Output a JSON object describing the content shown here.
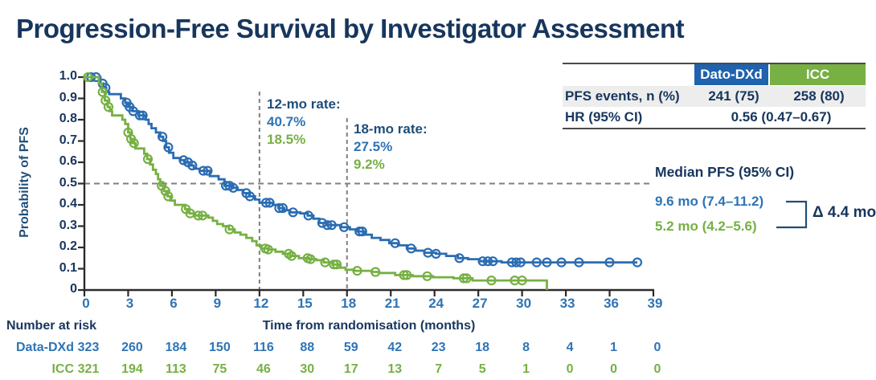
{
  "title": "Progression-Free Survival by Investigator Assessment",
  "colors": {
    "dato_curve": "#2A6CB2",
    "dato_text": "#2E74B5",
    "icc": "#76B043",
    "navy": "#17365D",
    "label_navy": "#1F4E79",
    "header_blue": "#1F62AE",
    "header_green": "#77B043",
    "row_gray": "#EDEDED",
    "axis": "#2B2B2B",
    "dashed_line": "#7F7F7F"
  },
  "summary_table": {
    "col_dato": "Dato-DXd",
    "col_icc": "ICC",
    "rows": [
      {
        "label": "PFS events, n (%)",
        "dato": "241 (75)",
        "icc": "258 (80)"
      },
      {
        "label": "HR (95% CI)",
        "combined": "0.56 (0.47–0.67)"
      }
    ]
  },
  "annotations": {
    "rate12_label": "12-mo rate:",
    "rate12_dato": "40.7%",
    "rate12_icc": "18.5%",
    "rate18_label": "18-mo rate:",
    "rate18_dato": "27.5%",
    "rate18_icc": "9.2%",
    "median_title": "Median PFS (95% CI)",
    "median_dato": "9.6 mo (7.4–11.2)",
    "median_icc": "5.2 mo (4.2–5.6)",
    "delta": "Δ 4.4 mo"
  },
  "axes": {
    "ylabel": "Probability of PFS",
    "xlabel": "Time from randomisation (months)"
  },
  "risk_table": {
    "heading": "Number at risk",
    "rows": [
      {
        "label": "Data-DXd",
        "counts": [
          323,
          260,
          184,
          150,
          116,
          88,
          59,
          42,
          23,
          18,
          8,
          4,
          1,
          0
        ]
      },
      {
        "label": "ICC",
        "counts": [
          321,
          194,
          113,
          75,
          46,
          30,
          17,
          13,
          7,
          5,
          1,
          0,
          0,
          0
        ]
      }
    ]
  },
  "chart_data": {
    "type": "line",
    "subtype": "kaplan-meier-step",
    "title": "Progression-Free Survival by Investigator Assessment",
    "xlabel": "Time from randomisation (months)",
    "ylabel": "Probability of PFS",
    "xlim": [
      0,
      39
    ],
    "ylim": [
      0,
      1.0
    ],
    "xticks": [
      0,
      3,
      6,
      9,
      12,
      15,
      18,
      21,
      24,
      27,
      30,
      33,
      36,
      39
    ],
    "ytick_labels": [
      "1.0",
      "0.9",
      "0.8",
      "0.7",
      "0.6",
      "0.5",
      "0.4",
      "0.3",
      "0.2",
      "0.1",
      "0"
    ],
    "reference_lines": {
      "horizontal_at": 0.5,
      "vertical_at": [
        12,
        18
      ]
    },
    "hr_95ci": "0.56 (0.47–0.67)",
    "series": [
      {
        "name": "Dato-DXd",
        "color": "#2A6CB2",
        "n": 323,
        "events": "241 (75)",
        "median_months": 9.6,
        "median_95ci": [
          7.4,
          11.2
        ],
        "rate_12mo_pct": 40.7,
        "rate_18mo_pct": 27.5,
        "end_month": 37.9,
        "drops_to_zero": false,
        "steps": [
          [
            0,
            1.0
          ],
          [
            1.1,
            0.97
          ],
          [
            1.3,
            0.95
          ],
          [
            1.5,
            0.93
          ],
          [
            1.7,
            0.92
          ],
          [
            2.5,
            0.9
          ],
          [
            2.8,
            0.88
          ],
          [
            3.0,
            0.86
          ],
          [
            3.3,
            0.84
          ],
          [
            3.7,
            0.82
          ],
          [
            4.2,
            0.8
          ],
          [
            4.4,
            0.78
          ],
          [
            4.6,
            0.76
          ],
          [
            4.9,
            0.74
          ],
          [
            5.2,
            0.72
          ],
          [
            5.4,
            0.7
          ],
          [
            5.6,
            0.67
          ],
          [
            5.8,
            0.645
          ],
          [
            6.1,
            0.62
          ],
          [
            6.6,
            0.61
          ],
          [
            6.9,
            0.6
          ],
          [
            7.2,
            0.585
          ],
          [
            7.5,
            0.57
          ],
          [
            7.9,
            0.56
          ],
          [
            8.6,
            0.535
          ],
          [
            9.2,
            0.52
          ],
          [
            9.6,
            0.49
          ],
          [
            10.1,
            0.48
          ],
          [
            10.5,
            0.47
          ],
          [
            10.9,
            0.455
          ],
          [
            11.3,
            0.44
          ],
          [
            11.7,
            0.425
          ],
          [
            12.0,
            0.41
          ],
          [
            12.9,
            0.4
          ],
          [
            13.3,
            0.385
          ],
          [
            13.7,
            0.375
          ],
          [
            14.1,
            0.365
          ],
          [
            14.8,
            0.36
          ],
          [
            15.3,
            0.35
          ],
          [
            15.7,
            0.335
          ],
          [
            16.1,
            0.315
          ],
          [
            16.6,
            0.305
          ],
          [
            17.6,
            0.295
          ],
          [
            18.2,
            0.285
          ],
          [
            18.7,
            0.275
          ],
          [
            19.2,
            0.26
          ],
          [
            19.7,
            0.245
          ],
          [
            20.3,
            0.235
          ],
          [
            20.9,
            0.22
          ],
          [
            21.5,
            0.21
          ],
          [
            22.1,
            0.195
          ],
          [
            22.7,
            0.185
          ],
          [
            23.3,
            0.175
          ],
          [
            24.1,
            0.17
          ],
          [
            24.8,
            0.16
          ],
          [
            25.6,
            0.15
          ],
          [
            26.3,
            0.145
          ],
          [
            27.1,
            0.135
          ],
          [
            28.6,
            0.13
          ]
        ],
        "censor_months": [
          0.45,
          0.8,
          1.25,
          1.45,
          2.9,
          3.1,
          3.35,
          3.8,
          4.0,
          5.35,
          5.75,
          6.8,
          7.1,
          7.4,
          8.15,
          8.45,
          9.7,
          9.95,
          10.2,
          11.1,
          11.35,
          12.45,
          12.7,
          13.35,
          13.6,
          14.3,
          15.35,
          16.3,
          16.65,
          16.95,
          17.8,
          18.85,
          19.05,
          21.3,
          22.4,
          23.55,
          24.1,
          25.7,
          27.3,
          27.65,
          28.0,
          29.3,
          29.6,
          29.9,
          31.0,
          31.7,
          32.7,
          33.9,
          36.0,
          37.9
        ]
      },
      {
        "name": "ICC",
        "color": "#76B043",
        "n": 321,
        "events": "258 (80)",
        "median_months": 5.2,
        "median_95ci": [
          4.2,
          5.6
        ],
        "rate_12mo_pct": 18.5,
        "rate_18mo_pct": 9.2,
        "end_month": 31.7,
        "drops_to_zero": true,
        "steps": [
          [
            0,
            1.0
          ],
          [
            1.0,
            0.97
          ],
          [
            1.2,
            0.93
          ],
          [
            1.4,
            0.89
          ],
          [
            1.6,
            0.86
          ],
          [
            1.75,
            0.84
          ],
          [
            1.9,
            0.82
          ],
          [
            2.6,
            0.8
          ],
          [
            2.8,
            0.78
          ],
          [
            3.0,
            0.74
          ],
          [
            3.15,
            0.71
          ],
          [
            3.3,
            0.69
          ],
          [
            3.5,
            0.665
          ],
          [
            4.1,
            0.64
          ],
          [
            4.3,
            0.615
          ],
          [
            4.5,
            0.59
          ],
          [
            4.7,
            0.565
          ],
          [
            4.9,
            0.545
          ],
          [
            5.05,
            0.52
          ],
          [
            5.2,
            0.49
          ],
          [
            5.45,
            0.465
          ],
          [
            5.7,
            0.44
          ],
          [
            5.9,
            0.42
          ],
          [
            6.2,
            0.4
          ],
          [
            6.9,
            0.38
          ],
          [
            7.2,
            0.36
          ],
          [
            7.6,
            0.35
          ],
          [
            8.5,
            0.34
          ],
          [
            8.8,
            0.325
          ],
          [
            9.1,
            0.31
          ],
          [
            9.5,
            0.3
          ],
          [
            9.9,
            0.285
          ],
          [
            10.3,
            0.27
          ],
          [
            10.7,
            0.26
          ],
          [
            11.1,
            0.245
          ],
          [
            11.5,
            0.23
          ],
          [
            11.8,
            0.21
          ],
          [
            12.1,
            0.195
          ],
          [
            12.6,
            0.19
          ],
          [
            13.1,
            0.18
          ],
          [
            13.6,
            0.17
          ],
          [
            14.1,
            0.16
          ],
          [
            14.7,
            0.15
          ],
          [
            15.4,
            0.145
          ],
          [
            15.9,
            0.14
          ],
          [
            16.4,
            0.13
          ],
          [
            17.0,
            0.12
          ],
          [
            17.5,
            0.105
          ],
          [
            17.9,
            0.095
          ],
          [
            18.5,
            0.09
          ],
          [
            19.7,
            0.085
          ],
          [
            20.2,
            0.08
          ],
          [
            21.3,
            0.07
          ],
          [
            22.5,
            0.065
          ],
          [
            23.9,
            0.06
          ],
          [
            25.3,
            0.055
          ],
          [
            26.6,
            0.045
          ]
        ],
        "censor_months": [
          0.25,
          1.25,
          1.45,
          1.65,
          3.0,
          3.2,
          3.4,
          4.35,
          5.3,
          5.55,
          5.75,
          6.95,
          7.25,
          7.8,
          8.1,
          9.95,
          12.4,
          12.6,
          14.0,
          14.2,
          15.3,
          15.5,
          16.5,
          17.1,
          17.3,
          18.7,
          19.95,
          21.9,
          22.1,
          23.5,
          26.0,
          26.2,
          27.9,
          29.5,
          30.0
        ]
      }
    ]
  }
}
